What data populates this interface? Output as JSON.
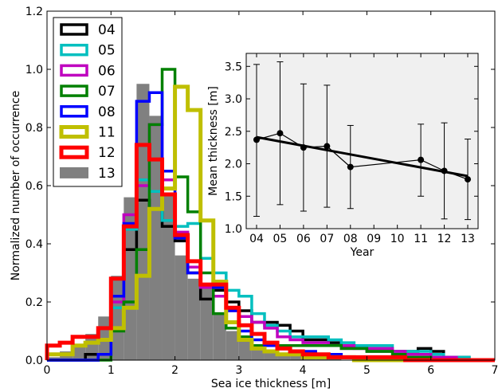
{
  "chart_data": [
    {
      "type": "histogram",
      "xlabel": "Sea ice thickness [m]",
      "ylabel": "Normalized number of occurrence",
      "xlim": [
        0,
        7
      ],
      "ylim": [
        0,
        1.2
      ],
      "xticks": [
        "0",
        "1",
        "2",
        "3",
        "4",
        "5",
        "6",
        "7"
      ],
      "yticks": [
        "0.0",
        "0.2",
        "0.4",
        "0.6",
        "0.8",
        "1.0",
        "1.2"
      ],
      "bin_edges": [
        0,
        0.2,
        0.4,
        0.6,
        0.8,
        1.0,
        1.2,
        1.4,
        1.6,
        1.8,
        2.0,
        2.2,
        2.4,
        2.6,
        2.8,
        3.0,
        3.2,
        3.4,
        3.6,
        3.8,
        4.0,
        4.2,
        4.4,
        4.6,
        4.8,
        5.0,
        5.2,
        5.4,
        5.6,
        5.8,
        6.0,
        6.2,
        6.4,
        6.6,
        6.8,
        7.0
      ],
      "legend_position": "upper-left",
      "series": [
        {
          "name": "04",
          "color": "#000000",
          "style": "step",
          "values": [
            0.0,
            0.0,
            0.0,
            0.02,
            0.02,
            0.18,
            0.38,
            0.55,
            0.52,
            0.46,
            0.41,
            0.3,
            0.21,
            0.24,
            0.2,
            0.17,
            0.13,
            0.13,
            0.12,
            0.1,
            0.07,
            0.07,
            0.06,
            0.04,
            0.04,
            0.03,
            0.03,
            0.03,
            0.03,
            0.04,
            0.03,
            0.01,
            0.01,
            0.0,
            0.0
          ]
        },
        {
          "name": "05",
          "color": "#00bfbf",
          "style": "step",
          "values": [
            0.0,
            0.0,
            0.0,
            0.0,
            0.02,
            0.18,
            0.45,
            0.62,
            0.58,
            0.48,
            0.46,
            0.47,
            0.35,
            0.3,
            0.24,
            0.22,
            0.16,
            0.12,
            0.1,
            0.08,
            0.08,
            0.08,
            0.07,
            0.06,
            0.05,
            0.05,
            0.05,
            0.03,
            0.03,
            0.03,
            0.02,
            0.01,
            0.01,
            0.0,
            0.0
          ]
        },
        {
          "name": "06",
          "color": "#bf00bf",
          "style": "step",
          "values": [
            0.0,
            0.0,
            0.0,
            0.0,
            0.02,
            0.2,
            0.5,
            0.6,
            0.81,
            0.62,
            0.44,
            0.32,
            0.25,
            0.22,
            0.17,
            0.15,
            0.13,
            0.11,
            0.08,
            0.07,
            0.06,
            0.06,
            0.05,
            0.05,
            0.04,
            0.04,
            0.04,
            0.03,
            0.02,
            0.02,
            0.01,
            0.01,
            0.0,
            0.0,
            0.0
          ]
        },
        {
          "name": "07",
          "color": "#008000",
          "style": "step",
          "values": [
            0.0,
            0.0,
            0.0,
            0.0,
            0.0,
            0.1,
            0.2,
            0.38,
            0.81,
            1.0,
            0.63,
            0.51,
            0.3,
            0.16,
            0.11,
            0.08,
            0.05,
            0.05,
            0.05,
            0.05,
            0.05,
            0.05,
            0.05,
            0.04,
            0.04,
            0.03,
            0.03,
            0.02,
            0.01,
            0.01,
            0.0,
            0.0,
            0.0,
            0.0,
            0.0
          ]
        },
        {
          "name": "08",
          "color": "#0000ff",
          "style": "step",
          "values": [
            0.0,
            0.0,
            0.0,
            0.0,
            0.02,
            0.22,
            0.47,
            0.89,
            0.92,
            0.65,
            0.42,
            0.3,
            0.26,
            0.25,
            0.17,
            0.1,
            0.07,
            0.05,
            0.04,
            0.03,
            0.03,
            0.02,
            0.02,
            0.01,
            0.01,
            0.01,
            0.0,
            0.0,
            0.0,
            0.0,
            0.0,
            0.0,
            0.0,
            0.0,
            0.0
          ]
        },
        {
          "name": "11",
          "color": "#bfbf00",
          "style": "step",
          "values": [
            0.02,
            0.02,
            0.05,
            0.06,
            0.07,
            0.11,
            0.18,
            0.29,
            0.52,
            0.59,
            0.94,
            0.86,
            0.48,
            0.27,
            0.13,
            0.07,
            0.04,
            0.03,
            0.02,
            0.02,
            0.01,
            0.01,
            0.01,
            0.01,
            0.0,
            0.0,
            0.0,
            0.0,
            0.0,
            0.0,
            0.0,
            0.0,
            0.0,
            0.0,
            0.0
          ]
        },
        {
          "name": "12",
          "color": "#ff0000",
          "style": "step",
          "values": [
            0.05,
            0.06,
            0.08,
            0.08,
            0.11,
            0.28,
            0.46,
            0.74,
            0.69,
            0.57,
            0.43,
            0.34,
            0.26,
            0.26,
            0.18,
            0.12,
            0.09,
            0.06,
            0.04,
            0.03,
            0.02,
            0.02,
            0.01,
            0.01,
            0.01,
            0.01,
            0.01,
            0.01,
            0.0,
            0.0,
            0.0,
            0.0,
            0.0,
            0.0,
            0.0
          ]
        },
        {
          "name": "13",
          "color": "#808080",
          "style": "bar",
          "values": [
            0.01,
            0.03,
            0.05,
            0.09,
            0.15,
            0.29,
            0.56,
            0.95,
            0.84,
            0.57,
            0.36,
            0.28,
            0.25,
            0.16,
            0.1,
            0.07,
            0.05,
            0.03,
            0.02,
            0.02,
            0.01,
            0.01,
            0.01,
            0.0,
            0.0,
            0.0,
            0.0,
            0.0,
            0.0,
            0.0,
            0.0,
            0.0,
            0.0,
            0.0,
            0.0
          ]
        }
      ]
    },
    {
      "type": "line",
      "xlabel": "Year",
      "ylabel": "Mean thickness [m]",
      "categories": [
        "04",
        "05",
        "06",
        "07",
        "08",
        "09",
        "10",
        "11",
        "12",
        "13"
      ],
      "ylim": [
        1.0,
        3.7
      ],
      "yticks": [
        "1.0",
        "1.5",
        "2.0",
        "2.5",
        "3.0",
        "3.5"
      ],
      "background": "#f0f0f0",
      "points": [
        {
          "x": "04",
          "y": 2.37,
          "err_low": 1.19,
          "err_high": 3.53
        },
        {
          "x": "05",
          "y": 2.47,
          "err_low": 1.37,
          "err_high": 3.57
        },
        {
          "x": "06",
          "y": 2.25,
          "err_low": 1.27,
          "err_high": 3.23
        },
        {
          "x": "07",
          "y": 2.27,
          "err_low": 1.33,
          "err_high": 3.21
        },
        {
          "x": "08",
          "y": 1.95,
          "err_low": 1.31,
          "err_high": 2.59
        },
        {
          "x": "11",
          "y": 2.06,
          "err_low": 1.5,
          "err_high": 2.61
        },
        {
          "x": "12",
          "y": 1.89,
          "err_low": 1.15,
          "err_high": 2.63
        },
        {
          "x": "13",
          "y": 1.76,
          "err_low": 1.14,
          "err_high": 2.38
        }
      ],
      "trend": {
        "x": [
          "04",
          "13"
        ],
        "y": [
          2.41,
          1.81
        ]
      }
    }
  ]
}
